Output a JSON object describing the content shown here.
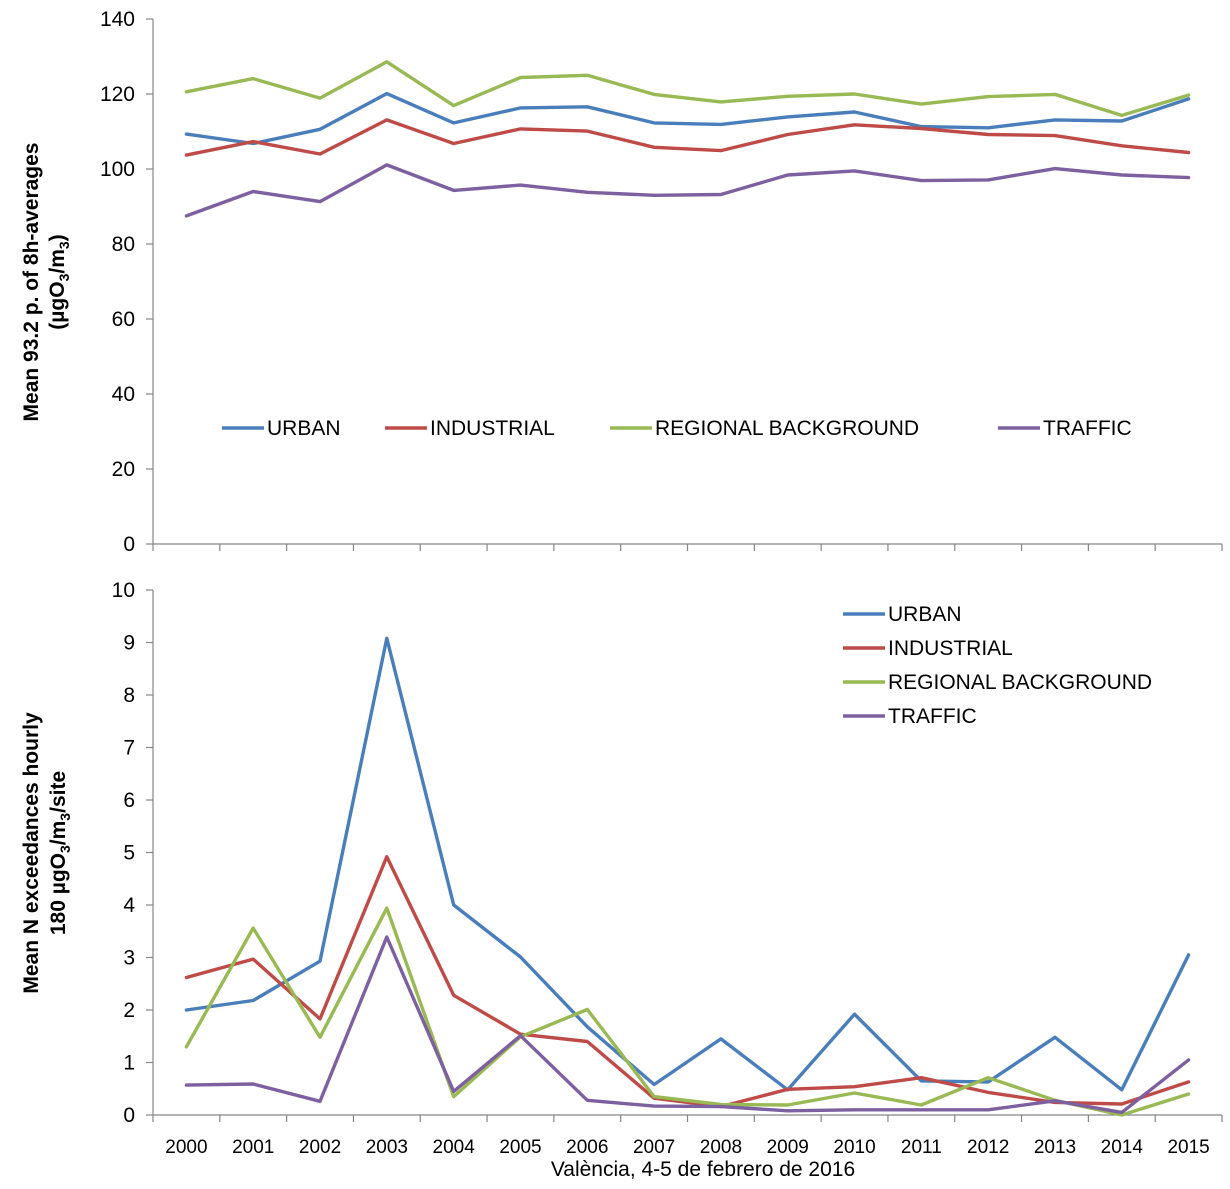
{
  "caption": "València, 4-5 de febrero de 2016",
  "colors": {
    "URBAN": "#4a7ebb",
    "INDUSTRIAL": "#be4b48",
    "REGIONAL BACKGROUND": "#98b954",
    "TRAFFIC": "#7d60a0"
  },
  "chart_data": [
    {
      "type": "line",
      "ylabel_line1": "Mean  93.2 p.  of  8h-averages",
      "ylabel_line2_parts": [
        "(µgO",
        "3",
        "/m",
        "3",
        ")"
      ],
      "ylim": [
        0,
        140
      ],
      "yticks": [
        0,
        20,
        40,
        60,
        80,
        100,
        120,
        140
      ],
      "legend_position": "center-inside",
      "x": [
        "2000",
        "2001",
        "2002",
        "2003",
        "2004",
        "2005",
        "2006",
        "2007",
        "2008",
        "2009",
        "2010",
        "2011",
        "2012",
        "2013",
        "2014",
        "2015"
      ],
      "series": [
        {
          "name": "URBAN",
          "values": [
            109.3,
            106.8,
            110.6,
            120.1,
            112.3,
            116.3,
            116.6,
            112.3,
            111.9,
            113.9,
            115.2,
            111.3,
            111.0,
            113.1,
            112.8,
            118.7
          ]
        },
        {
          "name": "INDUSTRIAL",
          "values": [
            103.7,
            107.3,
            104.0,
            113.1,
            106.8,
            110.7,
            110.1,
            105.8,
            104.9,
            109.2,
            111.8,
            110.8,
            109.2,
            108.9,
            106.2,
            104.4
          ]
        },
        {
          "name": "REGIONAL BACKGROUND",
          "values": [
            120.6,
            124.1,
            118.9,
            128.6,
            116.9,
            124.4,
            125.0,
            119.9,
            117.9,
            119.4,
            120.0,
            117.3,
            119.3,
            119.9,
            114.3,
            119.7
          ]
        },
        {
          "name": "TRAFFIC",
          "values": [
            87.5,
            94.0,
            91.3,
            101.1,
            94.3,
            95.7,
            93.8,
            93.0,
            93.2,
            98.4,
            99.5,
            96.9,
            97.1,
            100.1,
            98.4,
            97.7
          ]
        }
      ]
    },
    {
      "type": "line",
      "ylabel_line1": "Mean N exceedances hourly",
      "ylabel_line2_parts": [
        "180 µgO",
        "3",
        "/m",
        "3",
        "/site"
      ],
      "ylim": [
        0,
        10
      ],
      "yticks": [
        0,
        1,
        2,
        3,
        4,
        5,
        6,
        7,
        8,
        9,
        10
      ],
      "legend_position": "top-right",
      "x": [
        "2000",
        "2001",
        "2002",
        "2003",
        "2004",
        "2005",
        "2006",
        "2007",
        "2008",
        "2009",
        "2010",
        "2011",
        "2012",
        "2013",
        "2014",
        "2015"
      ],
      "series": [
        {
          "name": "URBAN",
          "values": [
            2.0,
            2.18,
            2.93,
            9.08,
            4.0,
            3.01,
            1.68,
            0.58,
            1.45,
            0.48,
            1.92,
            0.65,
            0.63,
            1.48,
            0.48,
            3.05
          ]
        },
        {
          "name": "INDUSTRIAL",
          "values": [
            2.62,
            2.97,
            1.83,
            4.92,
            2.28,
            1.54,
            1.4,
            0.32,
            0.16,
            0.49,
            0.54,
            0.71,
            0.43,
            0.24,
            0.21,
            0.63
          ]
        },
        {
          "name": "REGIONAL BACKGROUND",
          "values": [
            1.3,
            3.56,
            1.48,
            3.94,
            0.35,
            1.49,
            2.01,
            0.35,
            0.2,
            0.19,
            0.42,
            0.19,
            0.71,
            0.28,
            0.0,
            0.4
          ]
        },
        {
          "name": "TRAFFIC",
          "values": [
            0.57,
            0.59,
            0.26,
            3.39,
            0.45,
            1.51,
            0.28,
            0.17,
            0.16,
            0.08,
            0.1,
            0.1,
            0.1,
            0.27,
            0.05,
            1.05
          ]
        }
      ]
    }
  ]
}
